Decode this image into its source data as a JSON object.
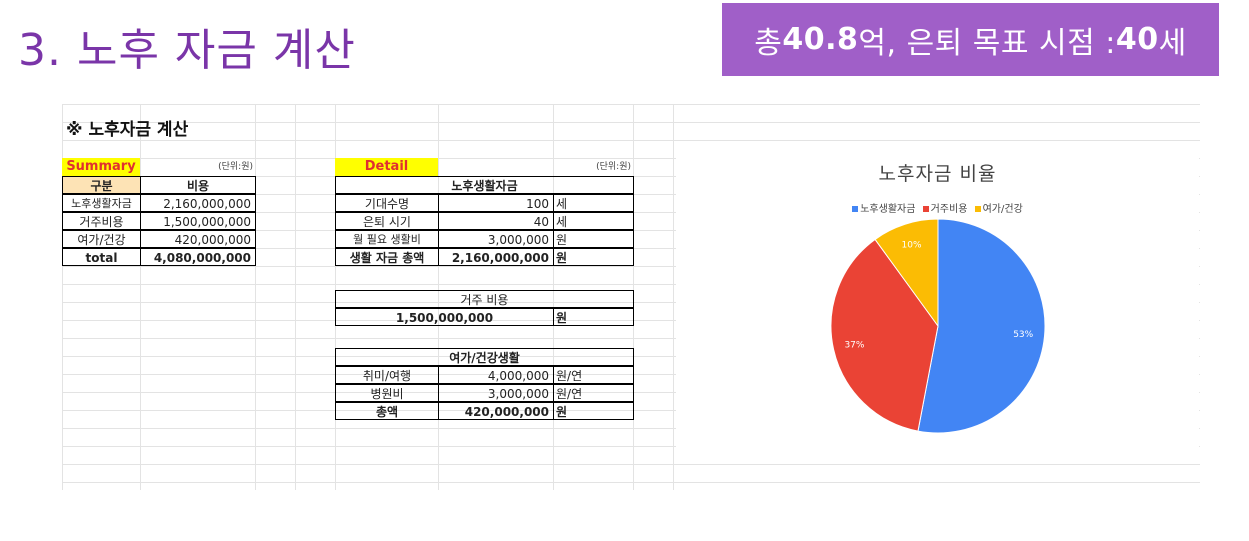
{
  "slide": {
    "title": "3. 노후 자금 계산",
    "summary_prefix": "총 ",
    "summary_total": "40.8",
    "summary_mid": "억, 은퇴 목표 시점 : ",
    "summary_age": "40",
    "summary_suffix": "세"
  },
  "sheet": {
    "title": "※ 노후자금 계산",
    "summary": {
      "label": "Summary",
      "unit": "(단위:원)",
      "headers": [
        "구분",
        "비용"
      ],
      "rows": [
        {
          "name": "노후생활자금",
          "value": "2,160,000,000"
        },
        {
          "name": "거주비용",
          "value": "1,500,000,000"
        },
        {
          "name": "여가/건강",
          "value": "420,000,000"
        }
      ],
      "total_label": "total",
      "total_value": "4,080,000,000"
    },
    "detail": {
      "label": "Detail",
      "unit": "(단위:원)",
      "living": {
        "title": "노후생활자금",
        "rows": [
          {
            "name": "기대수명",
            "value": "100",
            "unit": "세"
          },
          {
            "name": "은퇴 시기",
            "value": "40",
            "unit": "세"
          },
          {
            "name": "월 필요 생활비",
            "value": "3,000,000",
            "unit": "원"
          },
          {
            "name": "생활 자금 총액",
            "value": "2,160,000,000",
            "unit": "원"
          }
        ]
      },
      "housing": {
        "title": "거주 비용",
        "value": "1,500,000,000",
        "unit": "원"
      },
      "leisure": {
        "title": "여가/건강생활",
        "rows": [
          {
            "name": "취미/여행",
            "value": "4,000,000",
            "unit": "원/연"
          },
          {
            "name": "병원비",
            "value": "3,000,000",
            "unit": "원/연"
          },
          {
            "name": "총액",
            "value": "420,000,000",
            "unit": "원"
          }
        ]
      }
    }
  },
  "chart_data": {
    "type": "pie",
    "title": "노후자금 비율",
    "legend_position": "top",
    "categories": [
      "노후생활자금",
      "거주비용",
      "여가/건강"
    ],
    "values": [
      53,
      37,
      10
    ],
    "labels": [
      "53%",
      "37%",
      "10%"
    ],
    "colors": [
      "#4285f4",
      "#ea4335",
      "#fbbc04"
    ]
  }
}
